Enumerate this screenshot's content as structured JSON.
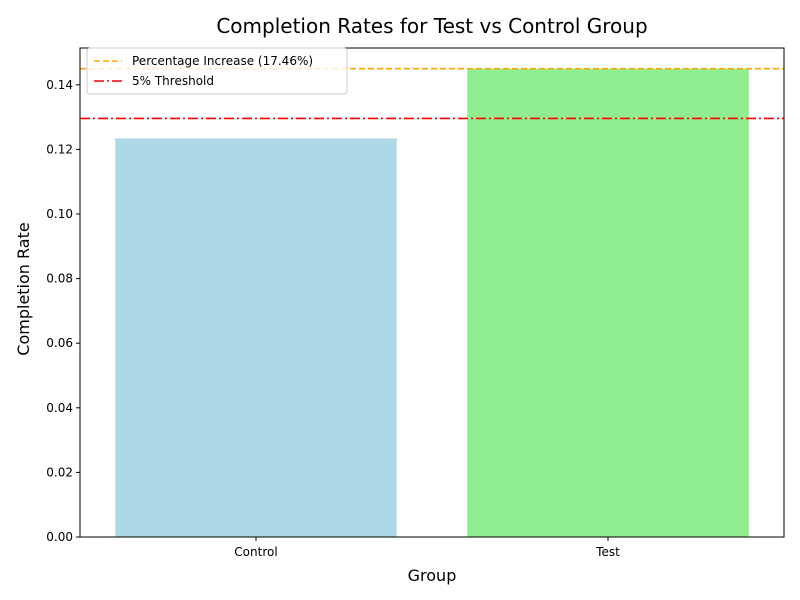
{
  "chart_data": {
    "type": "bar",
    "title": "Completion Rates for Test vs Control Group",
    "xlabel": "Group",
    "ylabel": "Completion Rate",
    "categories": [
      "Control",
      "Test"
    ],
    "values": [
      0.1234,
      0.145
    ],
    "bar_colors": [
      "#add8e6",
      "#90ee90"
    ],
    "ylim": [
      0,
      0.1514
    ],
    "yticks": [
      0.0,
      0.02,
      0.04,
      0.06,
      0.08,
      0.1,
      0.12,
      0.14
    ],
    "ytick_labels": [
      "0.00",
      "0.02",
      "0.04",
      "0.06",
      "0.08",
      "0.10",
      "0.12",
      "0.14"
    ],
    "grid": false,
    "legend_position": "top-left",
    "reference_lines": [
      {
        "label": "Percentage Increase (17.46%)",
        "value": 0.145,
        "color": "#ffa500",
        "style": "dashed"
      },
      {
        "label": "5% Threshold",
        "value": 0.1296,
        "color": "#ff0000",
        "style": "dashdot"
      }
    ]
  }
}
